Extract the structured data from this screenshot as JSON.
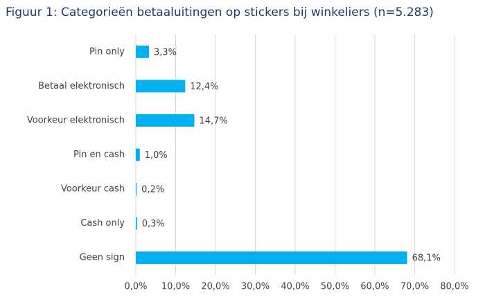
{
  "chart_data": {
    "type": "hbar",
    "title": "Figuur 1: Categorieën betaaluitingen op stickers bij winkeliers (n=5.283)",
    "categories": [
      "Pin only",
      "Betaal elektronisch",
      "Voorkeur elektronisch",
      "Pin en cash",
      "Voorkeur cash",
      "Cash only",
      "Geen sign"
    ],
    "values": [
      3.3,
      12.4,
      14.7,
      1.0,
      0.2,
      0.3,
      68.1
    ],
    "value_labels": [
      "3,3%",
      "12,4%",
      "14,7%",
      "1,0%",
      "0,2%",
      "0,3%",
      "68,1%"
    ],
    "color": "#00b0f0",
    "xlim": [
      0,
      80
    ],
    "xticks": [
      {
        "value": 0,
        "label": "0,0%"
      },
      {
        "value": 10,
        "label": "10,0%"
      },
      {
        "value": 20,
        "label": "20,0%"
      },
      {
        "value": 30,
        "label": "30,0%"
      },
      {
        "value": 40,
        "label": "40,0%"
      },
      {
        "value": 50,
        "label": "50,0%"
      },
      {
        "value": 60,
        "label": "60,0%"
      },
      {
        "value": 70,
        "label": "70,0%"
      },
      {
        "value": 80,
        "label": "80,0%"
      }
    ],
    "grid": true
  }
}
